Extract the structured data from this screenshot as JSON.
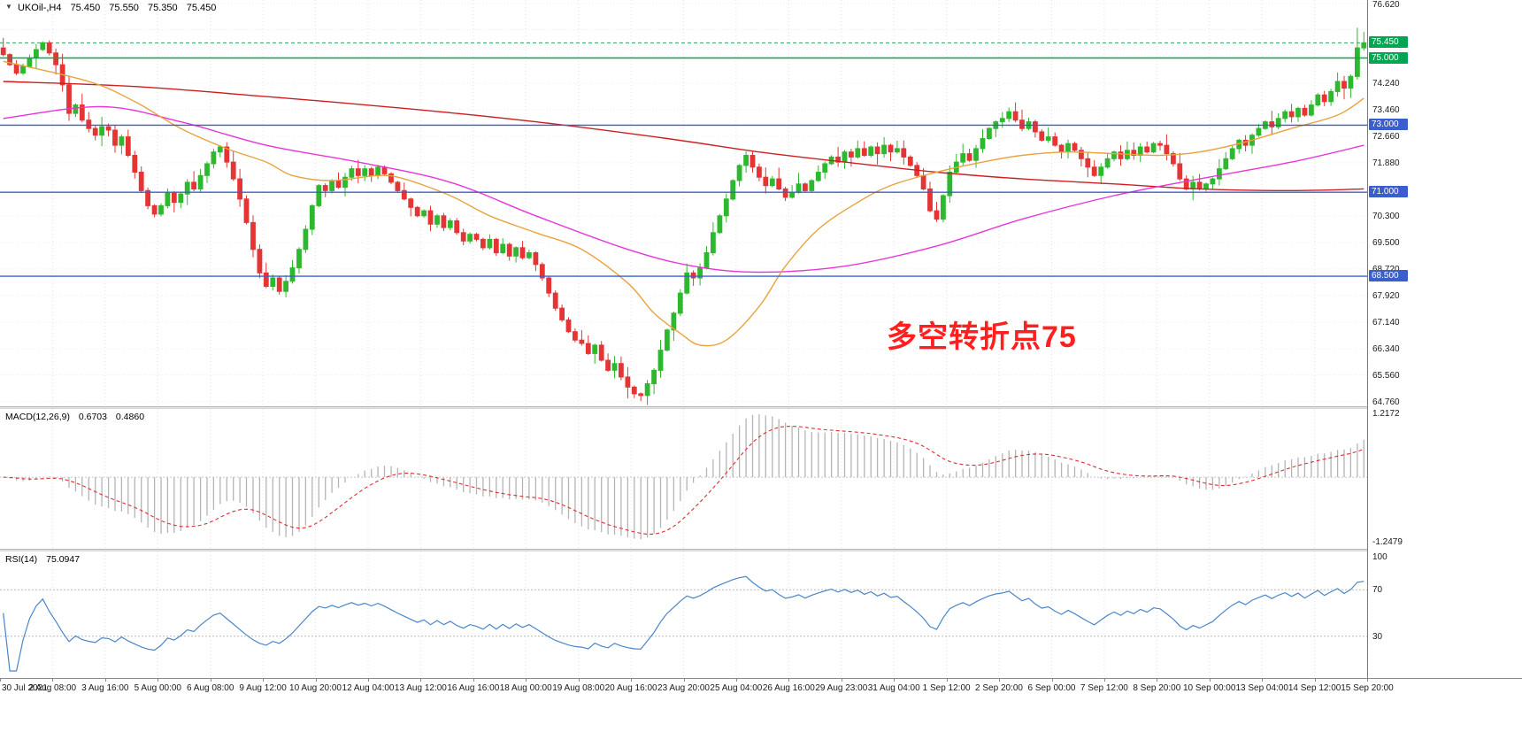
{
  "header": {
    "expander": "▼",
    "symbol_label": "UKOil-,H4",
    "open": "75.450",
    "high": "75.550",
    "low": "75.350",
    "close": "75.450"
  },
  "annotation": {
    "text": "多空转折点75",
    "color": "#ff1f1f"
  },
  "macd_panel": {
    "label": "MACD(12,26,9)",
    "main_value": "0.6703",
    "signal_value": "0.4860",
    "axis_top": "1.2172",
    "axis_bottom": "-1.2479"
  },
  "rsi_panel": {
    "label": "RSI(14)",
    "value": "75.0947",
    "axis_labels": [
      "100",
      "70",
      "30"
    ],
    "axis_values": [
      100,
      70,
      30
    ]
  },
  "colors": {
    "up": "#2eb82e",
    "down": "#e43434",
    "ma_slow": "#cc2020",
    "ma_medium": "#e835d8",
    "ma_fast": "#e8a33d",
    "macd_hist": "#b4b4b4",
    "macd_signal": "#d93030",
    "rsi_line": "#4a86c8",
    "grid": "#ededed",
    "vgrid": "#e3e3e3",
    "level_line": "#c8c8c8"
  },
  "chart_data": {
    "type": "candlestick",
    "symbol": "UKOil-",
    "timeframe": "H4",
    "title": "UKOil-,H4 75.450 75.550 75.350 75.450",
    "y_range": [
      64.76,
      76.62
    ],
    "first_open": 75.3,
    "closes": [
      75.1,
      74.8,
      74.55,
      74.75,
      75.0,
      75.25,
      75.45,
      75.15,
      74.8,
      74.2,
      73.35,
      73.6,
      73.15,
      72.9,
      72.7,
      72.95,
      72.85,
      72.4,
      72.65,
      72.1,
      71.6,
      71.05,
      70.6,
      70.35,
      70.6,
      71.0,
      70.7,
      70.95,
      71.3,
      71.1,
      71.5,
      71.85,
      72.2,
      72.35,
      71.9,
      71.4,
      70.8,
      70.1,
      69.3,
      68.6,
      68.2,
      68.45,
      68.05,
      68.35,
      68.75,
      69.3,
      69.9,
      70.6,
      71.2,
      71.05,
      71.35,
      71.15,
      71.45,
      71.7,
      71.5,
      71.7,
      71.5,
      71.75,
      71.55,
      71.3,
      71.05,
      70.8,
      70.55,
      70.3,
      70.45,
      70.05,
      70.3,
      69.95,
      70.15,
      69.8,
      69.55,
      69.75,
      69.6,
      69.35,
      69.6,
      69.2,
      69.45,
      69.1,
      69.35,
      69.05,
      69.2,
      68.85,
      68.45,
      68.0,
      67.55,
      67.2,
      66.85,
      66.6,
      66.5,
      66.2,
      66.45,
      66.0,
      65.7,
      65.9,
      65.5,
      65.2,
      65.0,
      64.95,
      65.3,
      65.7,
      66.3,
      66.9,
      67.4,
      68.0,
      68.6,
      68.45,
      68.75,
      69.2,
      69.8,
      70.3,
      70.8,
      71.35,
      71.8,
      72.1,
      71.75,
      71.45,
      71.2,
      71.4,
      71.1,
      70.85,
      71.0,
      71.25,
      71.05,
      71.35,
      71.6,
      71.85,
      72.05,
      71.9,
      72.2,
      72.05,
      72.3,
      72.1,
      72.35,
      72.15,
      72.4,
      72.2,
      72.3,
      72.05,
      71.8,
      71.5,
      71.1,
      70.45,
      70.2,
      70.9,
      71.6,
      71.9,
      72.15,
      71.95,
      72.3,
      72.6,
      72.9,
      73.1,
      73.2,
      73.4,
      73.15,
      72.9,
      73.1,
      72.8,
      72.55,
      72.65,
      72.4,
      72.2,
      72.45,
      72.25,
      72.0,
      71.75,
      71.5,
      71.75,
      72.0,
      72.2,
      72.0,
      72.25,
      72.1,
      72.35,
      72.2,
      72.45,
      72.4,
      72.15,
      71.85,
      71.4,
      71.1,
      71.3,
      71.1,
      71.25,
      71.4,
      71.7,
      72.0,
      72.3,
      72.55,
      72.4,
      72.7,
      72.9,
      73.1,
      72.95,
      73.2,
      73.4,
      73.25,
      73.5,
      73.3,
      73.6,
      73.9,
      73.7,
      74.0,
      74.3,
      74.1,
      74.45,
      75.3,
      75.45
    ],
    "extremes": {
      "highest_bar": 206,
      "highest": 75.9,
      "lowest_bar": 97,
      "lowest": 64.78
    },
    "x_labels": [
      "30 Jul 2021",
      "2 Aug 08:00",
      "3 Aug 16:00",
      "5 Aug 00:00",
      "6 Aug 08:00",
      "9 Aug 12:00",
      "10 Aug 20:00",
      "12 Aug 04:00",
      "13 Aug 12:00",
      "16 Aug 16:00",
      "18 Aug 00:00",
      "19 Aug 08:00",
      "20 Aug 16:00",
      "23 Aug 20:00",
      "25 Aug 04:00",
      "26 Aug 16:00",
      "29 Aug 23:00",
      "31 Aug 04:00",
      "1 Sep 12:00",
      "2 Sep 20:00",
      "6 Sep 00:00",
      "7 Sep 12:00",
      "8 Sep 20:00",
      "10 Sep 00:00",
      "13 Sep 04:00",
      "14 Sep 12:00",
      "15 Sep 20:00"
    ],
    "grid_prices": [
      76.62,
      75.84,
      75.06,
      74.24,
      73.46,
      72.66,
      71.88,
      70.3,
      69.5,
      68.72,
      67.92,
      67.14,
      66.34,
      65.56,
      64.76
    ],
    "axis_text_prices": [
      76.62,
      74.24,
      73.46,
      72.66,
      71.88,
      70.3,
      69.5,
      68.72,
      67.92,
      67.14,
      66.34,
      65.56,
      64.76
    ],
    "hlines": [
      {
        "price": 75.0,
        "color": "#00a651",
        "label": "75.000"
      },
      {
        "price": 73.0,
        "color": "#3a5fcd",
        "label": "73.000"
      },
      {
        "price": 71.0,
        "color": "#3a5fcd",
        "label": "71.000"
      },
      {
        "price": 68.5,
        "color": "#3a5fcd",
        "label": "68.500"
      }
    ],
    "current_price": {
      "price": 75.45,
      "label": "75.450",
      "color": "#00a651",
      "line_color": "#2fa35c"
    },
    "moving_averages": [
      {
        "name": "ma-slow-red",
        "color": "#cc2020",
        "points": [
          [
            0,
            74.3
          ],
          [
            20,
            74.15
          ],
          [
            40,
            73.85
          ],
          [
            61,
            73.5
          ],
          [
            81,
            73.1
          ],
          [
            101,
            72.6
          ],
          [
            115,
            72.2
          ],
          [
            128,
            71.9
          ],
          [
            142,
            71.6
          ],
          [
            155,
            71.4
          ],
          [
            169,
            71.25
          ],
          [
            182,
            71.1
          ],
          [
            196,
            71.05
          ],
          [
            207,
            71.1
          ]
        ]
      },
      {
        "name": "ma-medium-magenta",
        "color": "#e835d8",
        "points": [
          [
            0,
            73.2
          ],
          [
            15,
            73.55
          ],
          [
            27,
            73.1
          ],
          [
            40,
            72.4
          ],
          [
            54,
            71.9
          ],
          [
            68,
            71.3
          ],
          [
            81,
            70.3
          ],
          [
            95,
            69.3
          ],
          [
            105,
            68.8
          ],
          [
            115,
            68.62
          ],
          [
            128,
            68.8
          ],
          [
            142,
            69.4
          ],
          [
            155,
            70.2
          ],
          [
            169,
            70.9
          ],
          [
            182,
            71.4
          ],
          [
            196,
            71.9
          ],
          [
            207,
            72.4
          ]
        ]
      },
      {
        "name": "ma-fast-orange",
        "color": "#e8a33d",
        "points": [
          [
            0,
            74.9
          ],
          [
            13,
            74.3
          ],
          [
            20,
            73.7
          ],
          [
            27,
            72.9
          ],
          [
            34,
            72.3
          ],
          [
            40,
            71.9
          ],
          [
            44,
            71.5
          ],
          [
            50,
            71.35
          ],
          [
            57,
            71.5
          ],
          [
            61,
            71.4
          ],
          [
            68,
            70.9
          ],
          [
            74,
            70.3
          ],
          [
            81,
            69.8
          ],
          [
            88,
            69.3
          ],
          [
            95,
            68.3
          ],
          [
            99,
            67.4
          ],
          [
            103,
            66.8
          ],
          [
            106,
            66.45
          ],
          [
            110,
            66.6
          ],
          [
            115,
            67.6
          ],
          [
            119,
            68.8
          ],
          [
            124,
            69.9
          ],
          [
            130,
            70.7
          ],
          [
            135,
            71.2
          ],
          [
            142,
            71.6
          ],
          [
            149,
            71.9
          ],
          [
            155,
            72.1
          ],
          [
            162,
            72.2
          ],
          [
            169,
            72.15
          ],
          [
            176,
            72.1
          ],
          [
            182,
            72.2
          ],
          [
            189,
            72.5
          ],
          [
            196,
            72.9
          ],
          [
            203,
            73.3
          ],
          [
            207,
            73.8
          ]
        ]
      }
    ],
    "indicators": [
      {
        "type": "macd",
        "label": "MACD(12,26,9)",
        "values": [
          0.6703,
          0.486
        ],
        "range": [
          -1.2479,
          1.2172
        ]
      },
      {
        "type": "rsi",
        "label": "RSI(14)",
        "value": 75.0947,
        "range": [
          0,
          100
        ],
        "levels": [
          30,
          70
        ]
      }
    ]
  }
}
